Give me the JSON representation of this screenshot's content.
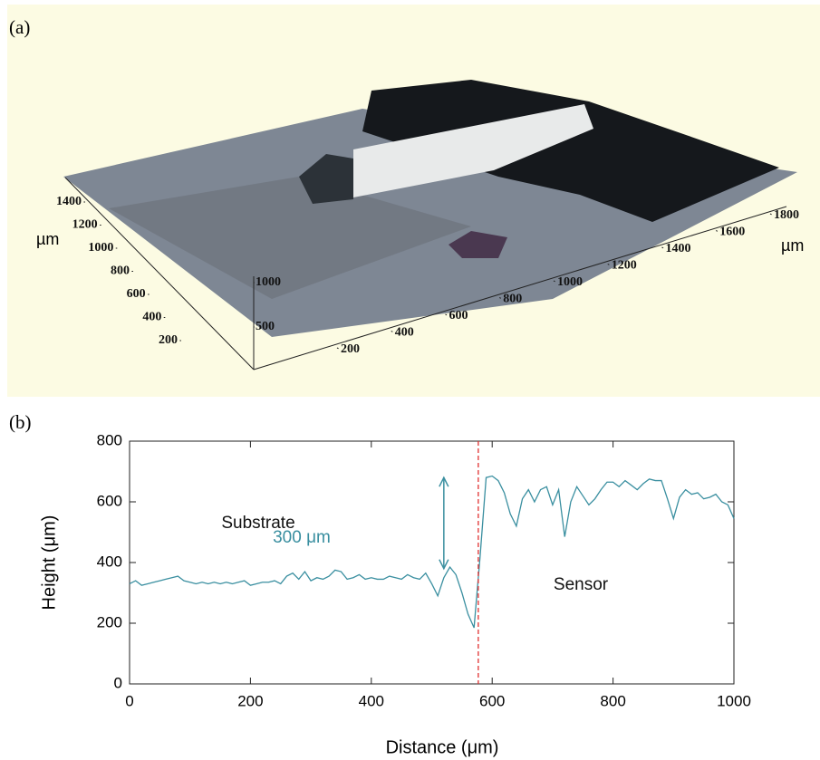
{
  "chart_data": [
    {
      "type": "surface",
      "panel_label": "(a)",
      "xlabel": "µm",
      "ylabel": "µm",
      "xticks": [
        200,
        400,
        600,
        800,
        1000,
        1200,
        1400,
        1600,
        1800
      ],
      "yticks": [
        200,
        400,
        600,
        800,
        1000,
        1200,
        1400
      ],
      "zticks": [
        500,
        1000
      ]
    },
    {
      "type": "line",
      "panel_label": "(b)",
      "xlabel": "Distance (μm)",
      "ylabel": "Height (μm)",
      "xlim": [
        0,
        1000
      ],
      "ylim": [
        0,
        800
      ],
      "xticks": [
        0,
        200,
        400,
        600,
        800,
        1000
      ],
      "yticks": [
        0,
        200,
        400,
        600,
        800
      ],
      "color": "#3a8fa0",
      "x": [
        0,
        10,
        20,
        30,
        40,
        50,
        60,
        70,
        80,
        90,
        100,
        110,
        120,
        130,
        140,
        150,
        160,
        170,
        180,
        190,
        200,
        210,
        220,
        230,
        240,
        250,
        260,
        270,
        280,
        290,
        300,
        310,
        320,
        330,
        340,
        350,
        360,
        370,
        380,
        390,
        400,
        410,
        420,
        430,
        440,
        450,
        460,
        470,
        480,
        490,
        500,
        510,
        520,
        530,
        540,
        550,
        560,
        570,
        580,
        590,
        600,
        610,
        620,
        630,
        640,
        650,
        660,
        670,
        680,
        690,
        700,
        710,
        720,
        730,
        740,
        750,
        760,
        770,
        780,
        790,
        800,
        810,
        820,
        830,
        840,
        850,
        860,
        870,
        880,
        890,
        900,
        910,
        920,
        930,
        940,
        950,
        960,
        970,
        980,
        990,
        1000
      ],
      "values": [
        330,
        340,
        325,
        330,
        335,
        340,
        345,
        350,
        355,
        340,
        335,
        330,
        335,
        330,
        335,
        330,
        335,
        330,
        335,
        340,
        325,
        330,
        335,
        335,
        340,
        330,
        355,
        365,
        345,
        370,
        340,
        350,
        345,
        355,
        375,
        370,
        345,
        350,
        360,
        345,
        350,
        345,
        345,
        355,
        350,
        345,
        360,
        350,
        345,
        365,
        330,
        290,
        350,
        385,
        360,
        300,
        230,
        185,
        420,
        680,
        685,
        670,
        630,
        560,
        520,
        610,
        640,
        600,
        640,
        650,
        590,
        640,
        485,
        600,
        650,
        620,
        590,
        610,
        640,
        665,
        665,
        650,
        670,
        655,
        640,
        660,
        675,
        670,
        670,
        610,
        545,
        615,
        640,
        625,
        630,
        610,
        615,
        625,
        600,
        590,
        545
      ],
      "vline": {
        "x": 577,
        "color": "#e03030"
      },
      "span": {
        "x": 520,
        "from": 380,
        "to": 680
      },
      "annotations": [
        "Substrate",
        "Sensor",
        "300 μm"
      ]
    }
  ]
}
